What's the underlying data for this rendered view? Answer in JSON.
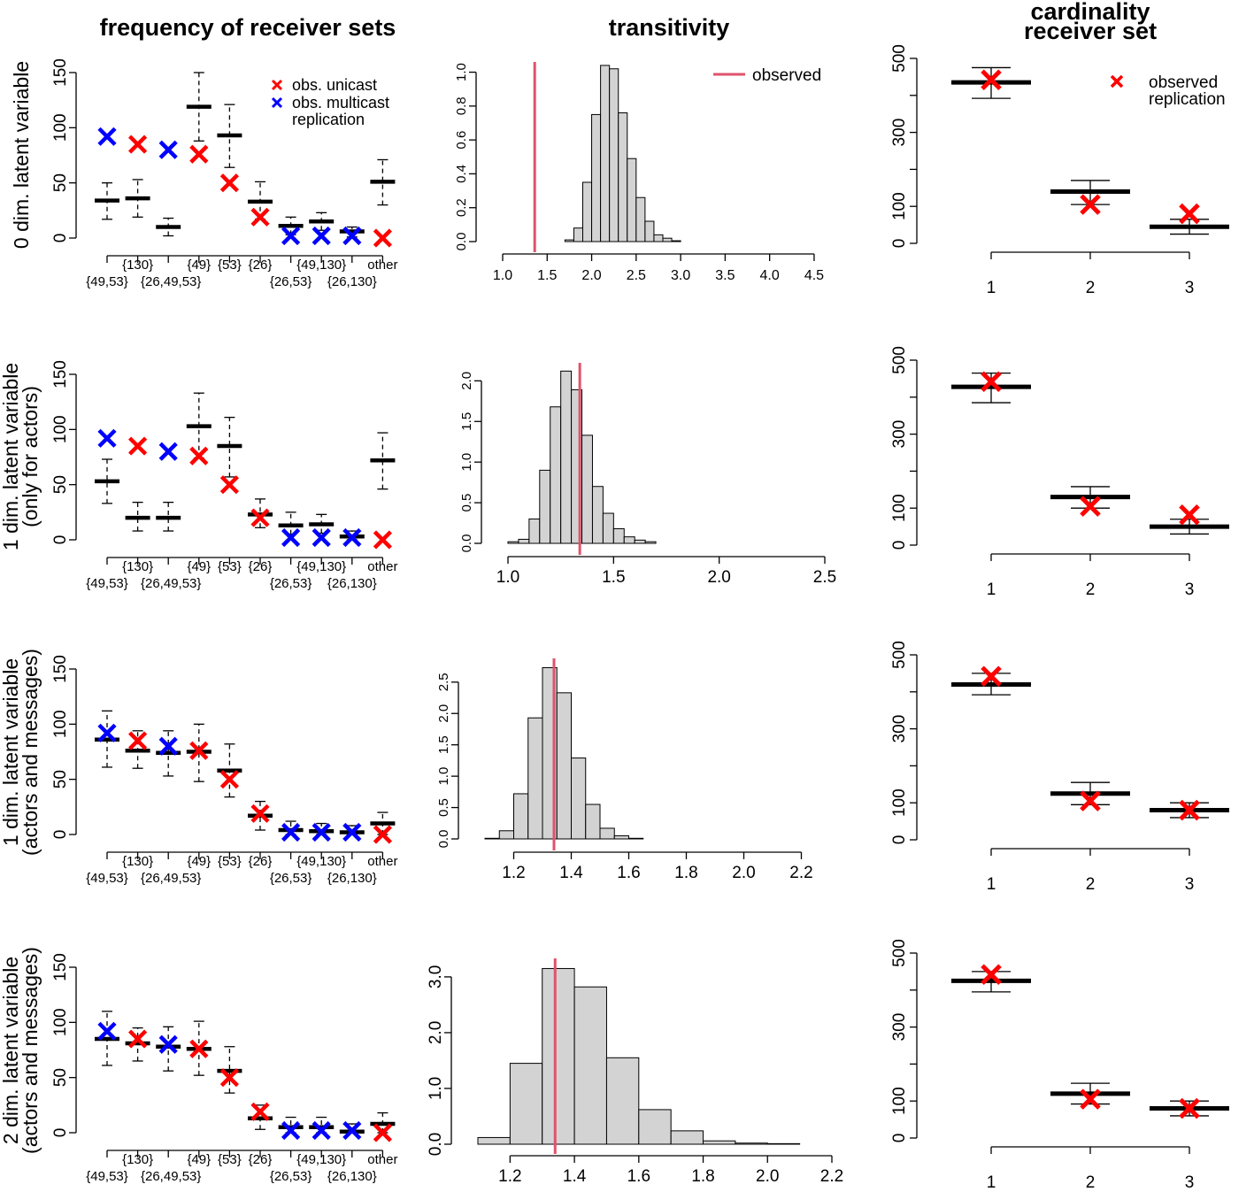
{
  "titles": {
    "col1": "frequency of receiver sets",
    "col2": "transitivity",
    "col3_line1": "cardinality",
    "col3_line2": "receiver set"
  },
  "row_labels": [
    [
      "0 dim. latent variable"
    ],
    [
      "1 dim. latent variable",
      "(only for actors)"
    ],
    [
      "1 dim. latent variable",
      "(actors and messages)"
    ],
    [
      "2 dim. latent variable",
      "(actors and messages)"
    ]
  ],
  "legends": {
    "freq": [
      "obs. unicast",
      "obs. multicast",
      "replication"
    ],
    "trans": "observed",
    "card": [
      "observed",
      "replication"
    ]
  },
  "colors": {
    "unicast": "#ff0000",
    "multicast": "#0000ff",
    "observed_line": "#df536b",
    "hist_fill": "#d3d3d3"
  },
  "chart_data": [
    {
      "type": "box",
      "panel": "frequency of receiver sets",
      "row": 1,
      "categories_top": [
        "{130}",
        "{49}",
        "{53}",
        "{26}",
        "{49,130}",
        "other"
      ],
      "categories_bottom": [
        "{49,53}",
        "{26,49,53}",
        "{26,53}",
        "{26,130}"
      ],
      "yticks": [
        0,
        50,
        100,
        150
      ],
      "ylim": [
        0,
        150
      ],
      "replication": [
        {
          "median": 34,
          "low": 17,
          "high": 50
        },
        {
          "median": 36,
          "low": 19,
          "high": 53
        },
        {
          "median": 10,
          "low": 2,
          "high": 18
        },
        {
          "median": 119,
          "low": 88,
          "high": 150
        },
        {
          "median": 93,
          "low": 64,
          "high": 121
        },
        {
          "median": 33,
          "low": 17,
          "high": 51
        },
        {
          "median": 11,
          "low": 3,
          "high": 19
        },
        {
          "median": 15,
          "low": 7,
          "high": 23
        },
        {
          "median": 6,
          "low": 1,
          "high": 10
        },
        {
          "median": 51,
          "low": 30,
          "high": 71
        }
      ],
      "observed": [
        92,
        85,
        80,
        76,
        50,
        19,
        2,
        2,
        2,
        0
      ],
      "observed_type": [
        "multicast",
        "unicast",
        "multicast",
        "unicast",
        "unicast",
        "unicast",
        "multicast",
        "multicast",
        "multicast",
        "unicast"
      ]
    },
    {
      "type": "histogram",
      "panel": "transitivity",
      "row": 1,
      "bins_start": 1.6,
      "bin_width": 0.1,
      "densities": [
        0.0,
        0.01,
        0.08,
        0.35,
        0.75,
        1.04,
        1.02,
        0.76,
        0.49,
        0.26,
        0.12,
        0.04,
        0.02,
        0.005
      ],
      "observed": 1.36,
      "xlim": [
        1.0,
        4.6
      ],
      "xticks": [
        1.0,
        1.5,
        2.0,
        2.5,
        3.0,
        3.5,
        4.0,
        4.5
      ],
      "yticks": [
        0.0,
        0.2,
        0.4,
        0.6,
        0.8,
        1.0
      ],
      "ylim": [
        0,
        1.05
      ]
    },
    {
      "type": "box",
      "panel": "cardinality receiver set",
      "row": 1,
      "categories": [
        "1",
        "2",
        "3"
      ],
      "yticks": [
        0,
        100,
        300,
        500
      ],
      "ylim": [
        0,
        500
      ],
      "replication": [
        {
          "median": 435,
          "low": 392,
          "high": 475
        },
        {
          "median": 140,
          "low": 105,
          "high": 170
        },
        {
          "median": 45,
          "low": 25,
          "high": 65
        }
      ],
      "observed": [
        442,
        105,
        80
      ]
    },
    {
      "type": "box",
      "panel": "frequency of receiver sets",
      "row": 2,
      "categories_top": [
        "{130}",
        "{49}",
        "{53}",
        "{26}",
        "{49,130}",
        "other"
      ],
      "categories_bottom": [
        "{49,53}",
        "{26,49,53}",
        "{26,53}",
        "{26,130}"
      ],
      "yticks": [
        0,
        50,
        100,
        150
      ],
      "ylim": [
        0,
        150
      ],
      "replication": [
        {
          "median": 53,
          "low": 33,
          "high": 73
        },
        {
          "median": 20,
          "low": 8,
          "high": 34
        },
        {
          "median": 20,
          "low": 8,
          "high": 34
        },
        {
          "median": 103,
          "low": 74,
          "high": 133
        },
        {
          "median": 85,
          "low": 57,
          "high": 111
        },
        {
          "median": 23,
          "low": 11,
          "high": 37
        },
        {
          "median": 13,
          "low": 5,
          "high": 25
        },
        {
          "median": 14,
          "low": 6,
          "high": 23
        },
        {
          "median": 3,
          "low": 0,
          "high": 8
        },
        {
          "median": 72,
          "low": 46,
          "high": 97
        }
      ],
      "observed": [
        92,
        85,
        80,
        76,
        50,
        20,
        2,
        2,
        2,
        0
      ],
      "observed_type": [
        "multicast",
        "unicast",
        "multicast",
        "unicast",
        "unicast",
        "unicast",
        "multicast",
        "multicast",
        "multicast",
        "unicast"
      ]
    },
    {
      "type": "histogram",
      "panel": "transitivity",
      "row": 2,
      "bins_start": 1.0,
      "bin_width": 0.05,
      "densities": [
        0.02,
        0.05,
        0.3,
        0.9,
        1.68,
        2.12,
        1.89,
        1.33,
        0.7,
        0.37,
        0.18,
        0.08,
        0.04,
        0.02,
        0.0,
        0.0,
        0.0,
        0.0,
        0.0,
        0.0
      ],
      "observed": 1.34,
      "xlim": [
        1.0,
        2.5
      ],
      "xticks": [
        1.0,
        1.5,
        2.0,
        2.5
      ],
      "yticks": [
        0.0,
        0.5,
        1.0,
        1.5,
        2.0
      ],
      "ylim": [
        0,
        2.2
      ]
    },
    {
      "type": "box",
      "panel": "cardinality receiver set",
      "row": 2,
      "categories": [
        "1",
        "2",
        "3"
      ],
      "yticks": [
        0,
        100,
        300,
        500
      ],
      "ylim": [
        0,
        500
      ],
      "replication": [
        {
          "median": 428,
          "low": 385,
          "high": 465
        },
        {
          "median": 130,
          "low": 100,
          "high": 158
        },
        {
          "median": 50,
          "low": 30,
          "high": 70
        }
      ],
      "observed": [
        442,
        105,
        82
      ]
    },
    {
      "type": "box",
      "panel": "frequency of receiver sets",
      "row": 3,
      "categories_top": [
        "{130}",
        "{49}",
        "{53}",
        "{26}",
        "{49,130}",
        "other"
      ],
      "categories_bottom": [
        "{49,53}",
        "{26,49,53}",
        "{26,53}",
        "{26,130}"
      ],
      "yticks": [
        0,
        50,
        100,
        150
      ],
      "ylim": [
        0,
        150
      ],
      "replication": [
        {
          "median": 86,
          "low": 61,
          "high": 112
        },
        {
          "median": 76,
          "low": 60,
          "high": 94
        },
        {
          "median": 74,
          "low": 53,
          "high": 94
        },
        {
          "median": 75,
          "low": 48,
          "high": 100
        },
        {
          "median": 58,
          "low": 34,
          "high": 82
        },
        {
          "median": 17,
          "low": 4,
          "high": 30
        },
        {
          "median": 4,
          "low": 0,
          "high": 12
        },
        {
          "median": 3,
          "low": 0,
          "high": 10
        },
        {
          "median": 2,
          "low": 0,
          "high": 8
        },
        {
          "median": 10,
          "low": 0,
          "high": 20
        }
      ],
      "observed": [
        92,
        85,
        80,
        76,
        50,
        19,
        2,
        2,
        2,
        0
      ],
      "observed_type": [
        "multicast",
        "unicast",
        "multicast",
        "unicast",
        "unicast",
        "unicast",
        "multicast",
        "multicast",
        "multicast",
        "unicast"
      ]
    },
    {
      "type": "histogram",
      "panel": "transitivity",
      "row": 3,
      "bins_start": 1.1,
      "bin_width": 0.05,
      "densities": [
        0.01,
        0.13,
        0.72,
        1.93,
        2.73,
        2.33,
        1.29,
        0.55,
        0.17,
        0.05,
        0.01,
        0.0
      ],
      "observed": 1.34,
      "xlim": [
        1.1,
        2.3
      ],
      "xticks": [
        1.2,
        1.4,
        1.6,
        1.8,
        2.0,
        2.2
      ],
      "yticks": [
        0.0,
        0.5,
        1.0,
        1.5,
        2.0,
        2.5
      ],
      "ylim": [
        0,
        2.85
      ]
    },
    {
      "type": "box",
      "panel": "cardinality receiver set",
      "row": 3,
      "categories": [
        "1",
        "2",
        "3"
      ],
      "yticks": [
        0,
        100,
        300,
        500
      ],
      "ylim": [
        0,
        500
      ],
      "replication": [
        {
          "median": 420,
          "low": 392,
          "high": 450
        },
        {
          "median": 125,
          "low": 95,
          "high": 155
        },
        {
          "median": 80,
          "low": 60,
          "high": 100
        }
      ],
      "observed": [
        442,
        105,
        80
      ]
    },
    {
      "type": "box",
      "panel": "frequency of receiver sets",
      "row": 4,
      "categories_top": [
        "{130}",
        "{49}",
        "{53}",
        "{26}",
        "{49,130}",
        "other"
      ],
      "categories_bottom": [
        "{49,53}",
        "{26,49,53}",
        "{26,53}",
        "{26,130}"
      ],
      "yticks": [
        0,
        50,
        100,
        150
      ],
      "ylim": [
        0,
        150
      ],
      "replication": [
        {
          "median": 85,
          "low": 61,
          "high": 110
        },
        {
          "median": 81,
          "low": 65,
          "high": 95
        },
        {
          "median": 78,
          "low": 56,
          "high": 96
        },
        {
          "median": 76,
          "low": 52,
          "high": 101
        },
        {
          "median": 56,
          "low": 36,
          "high": 78
        },
        {
          "median": 13,
          "low": 3,
          "high": 25
        },
        {
          "median": 5,
          "low": 0,
          "high": 14
        },
        {
          "median": 5,
          "low": 0,
          "high": 14
        },
        {
          "median": 1,
          "low": 0,
          "high": 8
        },
        {
          "median": 8,
          "low": 0,
          "high": 18
        }
      ],
      "observed": [
        92,
        85,
        80,
        76,
        50,
        19,
        2,
        2,
        2,
        0
      ],
      "observed_type": [
        "multicast",
        "unicast",
        "multicast",
        "unicast",
        "unicast",
        "unicast",
        "multicast",
        "multicast",
        "multicast",
        "unicast"
      ]
    },
    {
      "type": "histogram",
      "panel": "transitivity",
      "row": 4,
      "bins_start": 1.1,
      "bin_width": 0.1,
      "densities": [
        0.12,
        1.45,
        3.15,
        2.82,
        1.55,
        0.62,
        0.24,
        0.06,
        0.02,
        0.01,
        0.0
      ],
      "observed": 1.34,
      "xlim": [
        1.1,
        2.2
      ],
      "xticks": [
        1.2,
        1.4,
        1.6,
        1.8,
        2.0,
        2.2
      ],
      "yticks": [
        0.0,
        1.0,
        2.0,
        3.0
      ],
      "ylim": [
        0,
        3.3
      ]
    },
    {
      "type": "box",
      "panel": "cardinality receiver set",
      "row": 4,
      "categories": [
        "1",
        "2",
        "3"
      ],
      "yticks": [
        0,
        100,
        300,
        500
      ],
      "ylim": [
        0,
        500
      ],
      "replication": [
        {
          "median": 425,
          "low": 395,
          "high": 450
        },
        {
          "median": 120,
          "low": 92,
          "high": 148
        },
        {
          "median": 80,
          "low": 60,
          "high": 100
        }
      ],
      "observed": [
        442,
        105,
        80
      ]
    }
  ]
}
